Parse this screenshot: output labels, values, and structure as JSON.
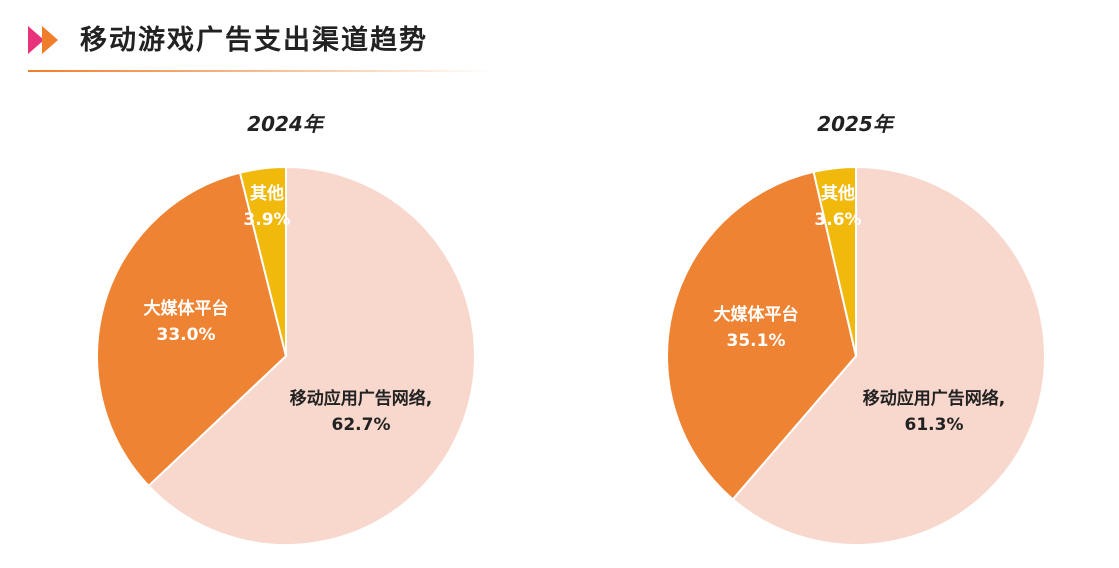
{
  "page": {
    "title": "移动游戏广告支出渠道趋势"
  },
  "colors": {
    "accent_orange": "#f07d2c",
    "accent_pink": "#e8327b",
    "app_network": "#f8d8cd",
    "big_media": "#ee8333",
    "other": "#f0b90c"
  },
  "chart_data": [
    {
      "type": "pie",
      "title": "2024年",
      "slices": [
        {
          "name": "移动应用广告网络",
          "label": "移动应用广告网络,",
          "value_label": "62.7%",
          "value": 62.7,
          "color": "#f8d8cd",
          "text_color": "#222222"
        },
        {
          "name": "大媒体平台",
          "label": "大媒体平台",
          "value_label": "33.0%",
          "value": 33.0,
          "color": "#ee8333",
          "text_color": "#ffffff"
        },
        {
          "name": "其他",
          "label": "其他",
          "value_label": "3.9%",
          "value": 3.9,
          "color": "#f0b90c",
          "text_color": "#ffffff"
        }
      ]
    },
    {
      "type": "pie",
      "title": "2025年",
      "slices": [
        {
          "name": "移动应用广告网络",
          "label": "移动应用广告网络,",
          "value_label": "61.3%",
          "value": 61.3,
          "color": "#f8d8cd",
          "text_color": "#222222"
        },
        {
          "name": "大媒体平台",
          "label": "大媒体平台",
          "value_label": "35.1%",
          "value": 35.1,
          "color": "#ee8333",
          "text_color": "#ffffff"
        },
        {
          "name": "其他",
          "label": "其他",
          "value_label": "3.6%",
          "value": 3.6,
          "color": "#f0b90c",
          "text_color": "#ffffff"
        }
      ]
    }
  ]
}
